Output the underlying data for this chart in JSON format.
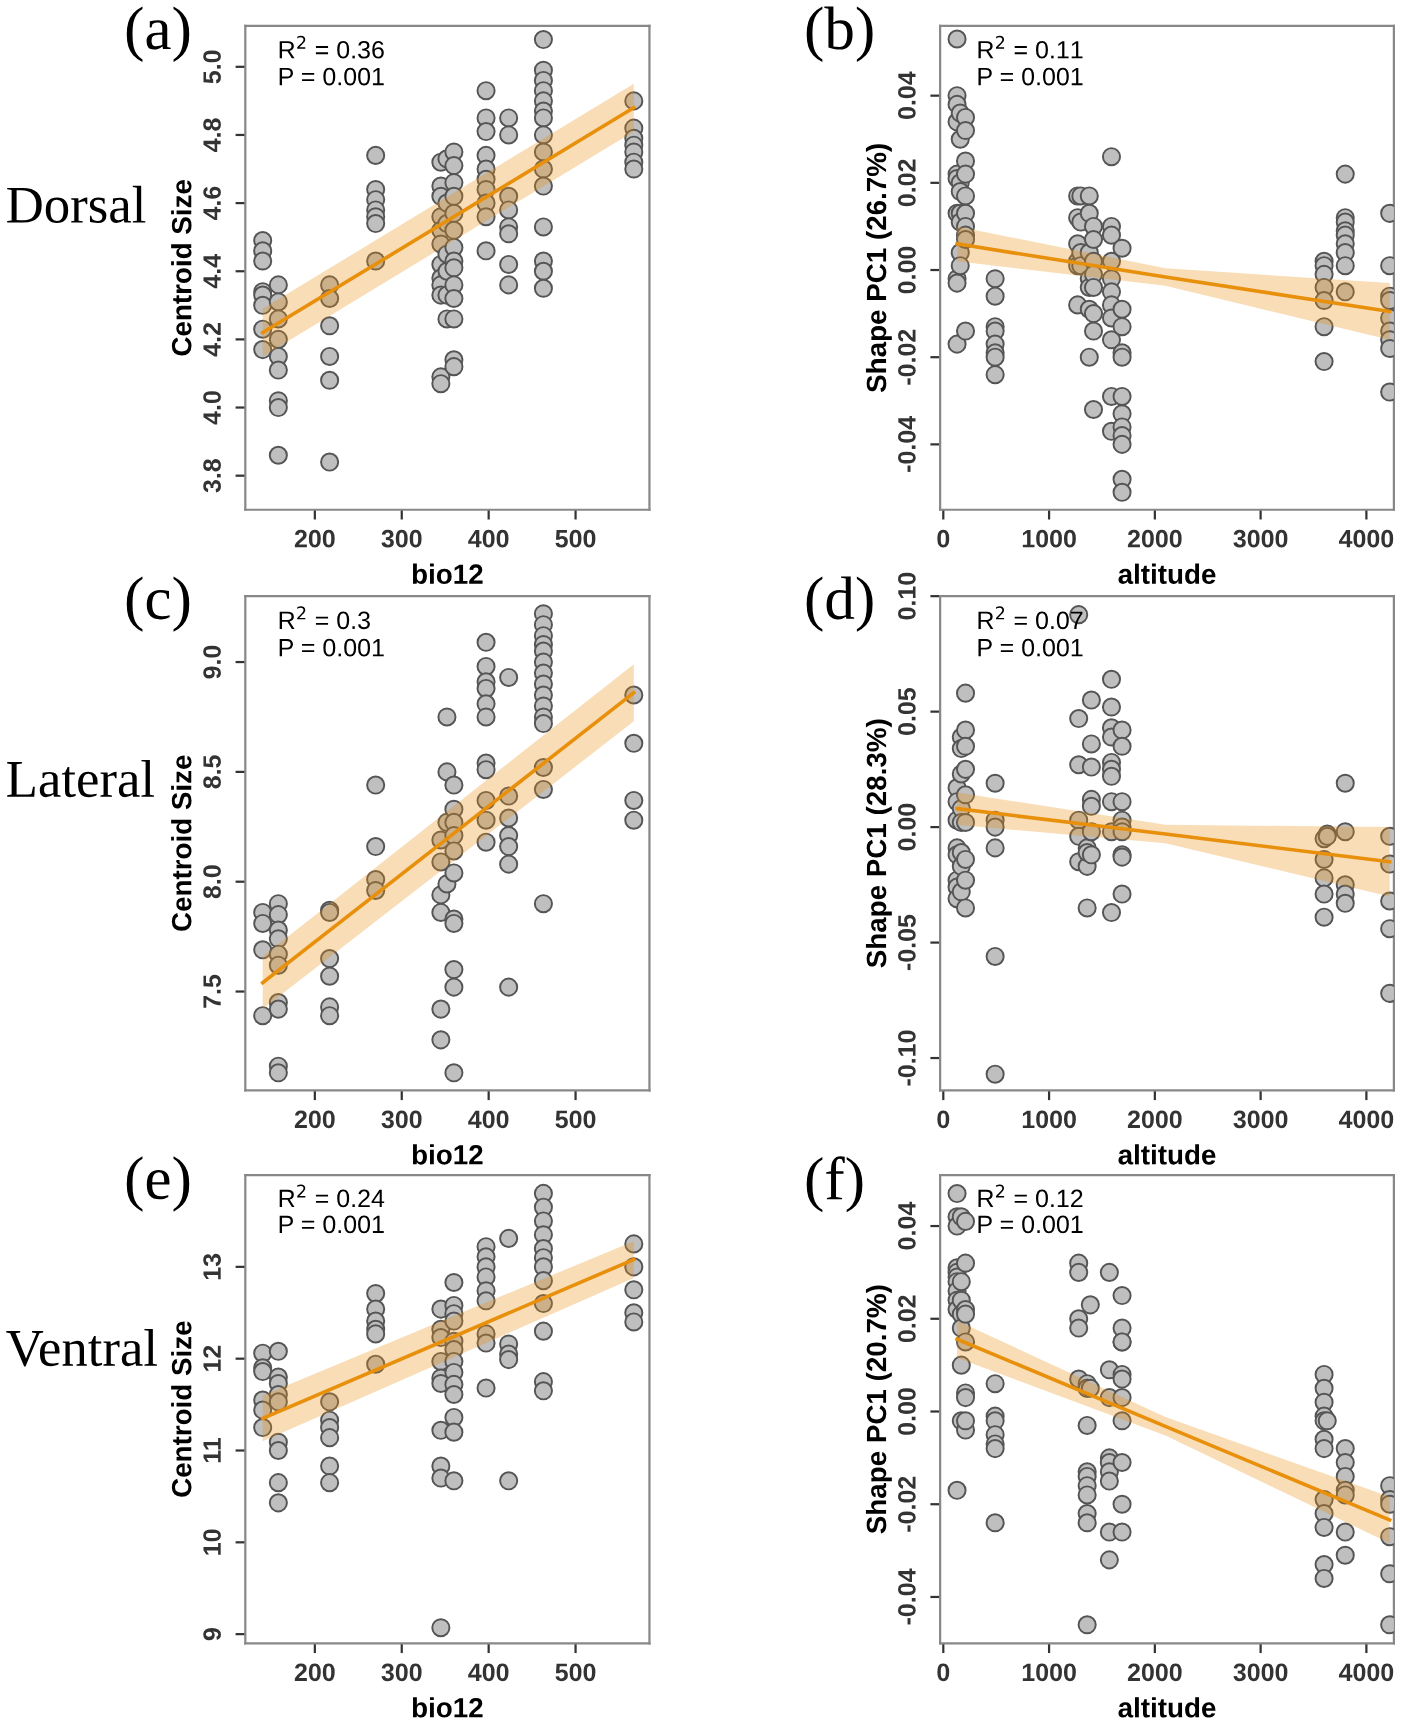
{
  "chart_data": [
    {
      "type": "scatter",
      "title": "(a)",
      "xlabel": "bio12",
      "ylabel": "Centroid Size",
      "xlim": [
        120,
        585
      ],
      "xticks": [
        200,
        300,
        400,
        500
      ],
      "ylim": [
        3.7,
        5.12
      ],
      "yticks": [
        3.8,
        {
          "value": 4,
          "label": "4.0"
        },
        4.2,
        4.4,
        4.6,
        4.8,
        {
          "value": 5,
          "label": "5.0"
        }
      ],
      "grid": false,
      "legend": false,
      "annotations": [
        "Dorsal",
        "R$^{2}$ = 0.36",
        "P = 0.001"
      ],
      "series": [
        {
          "marker": "circle",
          "color": "#bfbfbf",
          "x": [
            140,
            140,
            140,
            140,
            140,
            140,
            140,
            140,
            158,
            158,
            158,
            158,
            158,
            158,
            158,
            158,
            158,
            217,
            217,
            217,
            217,
            217,
            217,
            270,
            270,
            270,
            270,
            270,
            270,
            270,
            345,
            345,
            345,
            345,
            345,
            345,
            345,
            345,
            345,
            345,
            345,
            345,
            352,
            352,
            352,
            352,
            352,
            352,
            352,
            360,
            360,
            360,
            360,
            360,
            360,
            360,
            360,
            360,
            360,
            360,
            360,
            360,
            360,
            397,
            397,
            397,
            397,
            397,
            397,
            397,
            397,
            397,
            397,
            423,
            423,
            423,
            423,
            423,
            423,
            423,
            423,
            463,
            463,
            463,
            463,
            463,
            463,
            463,
            463,
            463,
            463,
            463,
            463,
            463,
            463,
            463,
            567,
            567,
            567,
            567,
            567,
            567,
            567
          ],
          "values": [
            4.49,
            4.46,
            4.43,
            4.34,
            4.33,
            4.3,
            4.23,
            4.17,
            4.36,
            4.31,
            4.26,
            4.2,
            4.15,
            4.11,
            4.02,
            4.0,
            3.86,
            4.36,
            4.32,
            4.24,
            4.15,
            4.08,
            3.84,
            4.74,
            4.64,
            4.61,
            4.58,
            4.56,
            4.54,
            4.43,
            4.72,
            4.65,
            4.62,
            4.56,
            4.52,
            4.48,
            4.42,
            4.38,
            4.36,
            4.33,
            4.09,
            4.07,
            4.73,
            4.6,
            4.54,
            4.45,
            4.4,
            4.33,
            4.26,
            4.75,
            4.71,
            4.66,
            4.62,
            4.57,
            4.52,
            4.47,
            4.43,
            4.41,
            4.36,
            4.32,
            4.26,
            4.14,
            4.12,
            4.93,
            4.85,
            4.81,
            4.74,
            4.7,
            4.67,
            4.64,
            4.6,
            4.56,
            4.46,
            4.85,
            4.8,
            4.62,
            4.58,
            4.53,
            4.51,
            4.42,
            4.36,
            5.08,
            4.99,
            4.96,
            4.93,
            4.9,
            4.87,
            4.85,
            4.8,
            4.75,
            4.7,
            4.65,
            4.53,
            4.43,
            4.4,
            4.35,
            4.9,
            4.82,
            4.79,
            4.77,
            4.75,
            4.72,
            4.7
          ]
        },
        {
          "type": "line",
          "color": "#e8900c",
          "x": [
            140,
            567
          ],
          "values": [
            4.22,
            4.88
          ],
          "lower": [
            4.15,
            4.81
          ],
          "upper": [
            4.29,
            4.95
          ]
        }
      ]
    },
    {
      "type": "scatter",
      "title": "(b)",
      "xlabel": "altitude",
      "ylabel": "Shape PC1 (26.7%)",
      "xlim": [
        -30,
        4260
      ],
      "xticks": [
        0,
        1000,
        2000,
        3000,
        4000
      ],
      "ylim": [
        -0.055,
        0.056
      ],
      "yticks": [
        {
          "value": -0.04,
          "label": "-0.04"
        },
        {
          "value": -0.02,
          "label": "-0.02"
        },
        {
          "value": 0,
          "label": "0.00"
        },
        {
          "value": 0.02,
          "label": "0.02"
        },
        {
          "value": 0.04,
          "label": "0.04"
        }
      ],
      "grid": false,
      "legend": false,
      "annotations": [
        "R$^{2}$ = 0.11",
        "P = 0.001"
      ],
      "series": [
        {
          "marker": "circle",
          "color": "#bfbfbf",
          "x": [
            130,
            130,
            130,
            130,
            130,
            130,
            130,
            130,
            130,
            130,
            160,
            160,
            160,
            160,
            160,
            160,
            160,
            160,
            210,
            210,
            210,
            210,
            210,
            210,
            210,
            210,
            210,
            210,
            490,
            490,
            490,
            490,
            490,
            490,
            490,
            490,
            1270,
            1270,
            1270,
            1270,
            1270,
            1270,
            1300,
            1300,
            1300,
            1300,
            1380,
            1380,
            1380,
            1380,
            1380,
            1380,
            1380,
            1420,
            1420,
            1420,
            1420,
            1420,
            1420,
            1420,
            1420,
            1590,
            1590,
            1590,
            1590,
            1590,
            1590,
            1590,
            1590,
            1590,
            1590,
            1590,
            1690,
            1690,
            1690,
            1690,
            1690,
            1690,
            1690,
            1690,
            1690,
            1690,
            1690,
            1690,
            3600,
            3600,
            3600,
            3600,
            3600,
            3600,
            3600,
            3800,
            3800,
            3800,
            3800,
            3800,
            3800,
            3800,
            3800,
            3800,
            4220,
            4220,
            4220,
            4220,
            4220,
            4220,
            4220,
            4220,
            4220
          ],
          "values": [
            0.053,
            0.04,
            0.038,
            0.034,
            0.022,
            0.021,
            0.013,
            -0.002,
            -0.003,
            -0.017,
            0.036,
            0.03,
            0.02,
            0.018,
            0.013,
            0.011,
            0.004,
            0.001,
            0.035,
            0.032,
            0.025,
            0.022,
            0.017,
            0.013,
            0.01,
            0.008,
            0.007,
            -0.014,
            -0.002,
            -0.006,
            -0.013,
            -0.014,
            -0.017,
            -0.019,
            -0.02,
            -0.024,
            0.017,
            0.012,
            0.006,
            0.002,
            0.001,
            -0.008,
            0.017,
            0.011,
            0.004,
            0.001,
            0.017,
            0.013,
            0.004,
            -0.002,
            -0.004,
            -0.009,
            -0.02,
            0.01,
            0.007,
            0.002,
            -0.001,
            -0.004,
            -0.01,
            -0.014,
            -0.032,
            0.026,
            0.01,
            0.008,
            0.002,
            -0.002,
            -0.005,
            -0.008,
            -0.011,
            -0.016,
            -0.029,
            -0.037,
            0.005,
            -0.009,
            -0.013,
            -0.019,
            -0.02,
            -0.029,
            -0.033,
            -0.036,
            -0.038,
            -0.04,
            -0.048,
            -0.051,
            0.002,
            0.001,
            -0.001,
            -0.004,
            -0.007,
            -0.013,
            -0.021,
            0.022,
            0.012,
            0.011,
            0.009,
            0.008,
            0.006,
            0.004,
            0.001,
            -0.005,
            0.013,
            0.001,
            -0.006,
            -0.007,
            -0.011,
            -0.014,
            -0.016,
            -0.018,
            -0.028
          ]
        },
        {
          "type": "line",
          "color": "#e8900c",
          "x": [
            130,
            2100,
            4220
          ],
          "values": [
            0.006,
            -0.0016,
            -0.0095
          ],
          "lower": [
            0.002,
            -0.0036,
            -0.016
          ],
          "upper": [
            0.01,
            0.0004,
            -0.003
          ]
        }
      ]
    },
    {
      "type": "scatter",
      "title": "(c)",
      "xlabel": "bio12",
      "ylabel": "Centroid Size",
      "xlim": [
        120,
        585
      ],
      "xticks": [
        200,
        300,
        400,
        500
      ],
      "ylim": [
        7.05,
        9.3
      ],
      "yticks": [
        7.5,
        {
          "value": 8,
          "label": "8.0"
        },
        8.5,
        {
          "value": 9,
          "label": "9.0"
        }
      ],
      "grid": false,
      "legend": false,
      "annotations": [
        "Lateral",
        "R$^{2}$ = 0.3",
        "P = 0.001"
      ],
      "series": [
        {
          "marker": "circle",
          "color": "#bfbfbf",
          "x": [
            140,
            140,
            140,
            140,
            158,
            158,
            158,
            158,
            158,
            158,
            158,
            158,
            158,
            158,
            217,
            217,
            217,
            217,
            217,
            217,
            270,
            270,
            270,
            270,
            345,
            345,
            345,
            345,
            345,
            345,
            352,
            352,
            352,
            352,
            360,
            360,
            360,
            360,
            360,
            360,
            360,
            360,
            360,
            360,
            360,
            397,
            397,
            397,
            397,
            397,
            397,
            397,
            397,
            397,
            397,
            397,
            423,
            423,
            423,
            423,
            423,
            423,
            423,
            463,
            463,
            463,
            463,
            463,
            463,
            463,
            463,
            463,
            463,
            463,
            463,
            463,
            463,
            463,
            567,
            567,
            567,
            567
          ],
          "values": [
            7.86,
            7.81,
            7.69,
            7.39,
            7.9,
            7.85,
            7.78,
            7.74,
            7.67,
            7.62,
            7.45,
            7.42,
            7.16,
            7.13,
            7.87,
            7.86,
            7.65,
            7.57,
            7.43,
            7.39,
            8.44,
            8.16,
            8.01,
            7.96,
            8.19,
            8.09,
            7.94,
            7.86,
            7.42,
            7.28,
            8.75,
            8.5,
            8.27,
            7.99,
            8.44,
            8.33,
            8.27,
            8.21,
            8.14,
            8.04,
            7.83,
            7.81,
            7.6,
            7.52,
            7.13,
            9.09,
            8.98,
            8.91,
            8.88,
            8.81,
            8.75,
            8.54,
            8.51,
            8.37,
            8.28,
            8.18,
            8.93,
            8.39,
            8.29,
            8.21,
            8.16,
            8.08,
            7.52,
            9.22,
            9.17,
            9.12,
            9.08,
            9.05,
            9.0,
            8.95,
            8.9,
            8.85,
            8.8,
            8.75,
            8.72,
            8.52,
            8.42,
            7.9,
            8.85,
            8.63,
            8.37,
            8.28
          ]
        },
        {
          "type": "line",
          "color": "#e8900c",
          "x": [
            140,
            567
          ],
          "values": [
            7.54,
            8.86
          ],
          "lower": [
            7.42,
            8.73
          ],
          "upper": [
            7.66,
            8.99
          ]
        }
      ]
    },
    {
      "type": "scatter",
      "title": "(d)",
      "xlabel": "altitude",
      "ylabel": "Shape PC1 (28.3%)",
      "xlim": [
        -30,
        4260
      ],
      "xticks": [
        0,
        1000,
        2000,
        3000,
        4000
      ],
      "ylim": [
        -0.114,
        0.1
      ],
      "yticks": [
        {
          "value": -0.1,
          "label": "-0.10"
        },
        {
          "value": -0.05,
          "label": "-0.05"
        },
        {
          "value": 0,
          "label": "0.00"
        },
        {
          "value": 0.05,
          "label": "0.05"
        },
        {
          "value": 0.1,
          "label": "0.10"
        }
      ],
      "grid": false,
      "legend": false,
      "annotations": [
        "R$^{2}$ = 0.07",
        "P = 0.001"
      ],
      "series": [
        {
          "marker": "circle",
          "color": "#bfbfbf",
          "x": [
            130,
            130,
            130,
            130,
            130,
            130,
            130,
            130,
            170,
            170,
            170,
            170,
            170,
            170,
            170,
            170,
            210,
            210,
            210,
            210,
            210,
            210,
            210,
            210,
            210,
            490,
            490,
            490,
            490,
            490,
            490,
            1280,
            1280,
            1280,
            1280,
            1280,
            1280,
            1360,
            1360,
            1360,
            1360,
            1400,
            1400,
            1400,
            1400,
            1400,
            1400,
            1400,
            1590,
            1590,
            1590,
            1590,
            1590,
            1590,
            1590,
            1590,
            1590,
            1590,
            1690,
            1690,
            1690,
            1690,
            1690,
            1690,
            1690,
            1690,
            1690,
            3600,
            3600,
            3600,
            3600,
            3600,
            3630,
            3630,
            3800,
            3800,
            3800,
            3800,
            3800,
            4220,
            4220,
            4220,
            4220,
            4220
          ],
          "values": [
            0.017,
            0.011,
            0.003,
            -0.009,
            -0.012,
            -0.023,
            -0.026,
            -0.031,
            0.039,
            0.034,
            0.023,
            0.008,
            0.002,
            -0.011,
            -0.017,
            -0.028,
            0.058,
            0.042,
            0.035,
            0.025,
            0.014,
            0.002,
            -0.014,
            -0.023,
            -0.035,
            0.019,
            0.003,
            0.0,
            -0.009,
            -0.056,
            -0.107,
            0.092,
            0.047,
            0.027,
            0.003,
            -0.004,
            -0.015,
            -0.009,
            -0.017,
            -0.035,
            -0.011,
            0.055,
            0.036,
            0.026,
            0.012,
            0.009,
            -0.002,
            -0.012,
            0.064,
            0.052,
            0.043,
            0.039,
            0.028,
            0.025,
            0.022,
            0.011,
            -0.002,
            -0.037,
            0.042,
            0.035,
            0.011,
            0.003,
            0.0,
            -0.002,
            -0.012,
            -0.013,
            -0.029,
            -0.005,
            -0.014,
            -0.022,
            -0.029,
            -0.039,
            -0.003,
            -0.004,
            0.019,
            -0.002,
            -0.025,
            -0.029,
            -0.033,
            -0.004,
            -0.016,
            -0.032,
            -0.044,
            -0.072
          ]
        },
        {
          "type": "line",
          "color": "#e8900c",
          "x": [
            130,
            2100,
            4220
          ],
          "values": [
            0.008,
            -0.003,
            -0.015
          ],
          "lower": [
            0.001,
            -0.007,
            -0.03
          ],
          "upper": [
            0.015,
            0.001,
            0.0
          ]
        }
      ]
    },
    {
      "type": "scatter",
      "title": "(e)",
      "xlabel": "bio12",
      "ylabel": "Centroid Size",
      "xlim": [
        120,
        585
      ],
      "xticks": [
        200,
        300,
        400,
        500
      ],
      "ylim": [
        8.9,
        14.0
      ],
      "yticks": [
        9,
        10,
        11,
        12,
        13
      ],
      "grid": false,
      "legend": false,
      "annotations": [
        "Ventral",
        "R$^{2}$ = 0.24",
        "P = 0.001"
      ],
      "series": [
        {
          "marker": "circle",
          "color": "#bfbfbf",
          "x": [
            140,
            140,
            140,
            140,
            140,
            140,
            158,
            158,
            158,
            158,
            158,
            158,
            158,
            158,
            158,
            217,
            217,
            217,
            217,
            217,
            217,
            270,
            270,
            270,
            270,
            270,
            270,
            345,
            345,
            345,
            345,
            345,
            345,
            345,
            345,
            345,
            345,
            360,
            360,
            360,
            360,
            360,
            360,
            360,
            360,
            360,
            360,
            360,
            360,
            360,
            397,
            397,
            397,
            397,
            397,
            397,
            397,
            397,
            397,
            423,
            423,
            423,
            423,
            423,
            463,
            463,
            463,
            463,
            463,
            463,
            463,
            463,
            463,
            463,
            463,
            463,
            567,
            567,
            567,
            567,
            567
          ],
          "values": [
            12.06,
            11.9,
            11.86,
            11.55,
            11.44,
            11.25,
            12.08,
            11.8,
            11.73,
            11.61,
            11.53,
            11.09,
            11.0,
            10.65,
            10.43,
            11.53,
            11.33,
            11.25,
            11.14,
            10.83,
            10.65,
            12.71,
            12.54,
            12.41,
            12.32,
            12.27,
            11.94,
            12.54,
            12.32,
            12.23,
            11.97,
            11.79,
            11.73,
            11.22,
            10.83,
            10.7,
            9.07,
            12.83,
            12.58,
            12.49,
            12.41,
            12.19,
            12.1,
            11.97,
            11.85,
            11.72,
            11.61,
            11.36,
            11.2,
            10.67,
            13.22,
            13.11,
            13.0,
            12.89,
            12.74,
            12.63,
            12.27,
            12.17,
            11.68,
            13.31,
            12.16,
            12.05,
            11.99,
            10.67,
            13.8,
            13.65,
            13.5,
            13.35,
            13.2,
            13.1,
            13.0,
            12.85,
            12.6,
            12.3,
            11.75,
            11.65,
            13.25,
            13.0,
            12.75,
            12.5,
            12.4
          ]
        },
        {
          "type": "line",
          "color": "#e8900c",
          "x": [
            140,
            567
          ],
          "values": [
            11.35,
            13.08
          ],
          "lower": [
            11.1,
            12.88
          ],
          "upper": [
            11.6,
            13.28
          ]
        }
      ]
    },
    {
      "type": "scatter",
      "title": "(f)",
      "xlabel": "altitude",
      "ylabel": "Shape PC1 (20.7%)",
      "xlim": [
        -30,
        4260
      ],
      "xticks": [
        0,
        1000,
        2000,
        3000,
        4000
      ],
      "ylim": [
        -0.05,
        0.051
      ],
      "yticks": [
        {
          "value": -0.04,
          "label": "-0.04"
        },
        {
          "value": -0.02,
          "label": "-0.02"
        },
        {
          "value": 0,
          "label": "0.00"
        },
        {
          "value": 0.02,
          "label": "0.02"
        },
        {
          "value": 0.04,
          "label": "0.04"
        }
      ],
      "grid": false,
      "legend": false,
      "annotations": [
        "R$^{2}$ = 0.12",
        "P = 0.001"
      ],
      "series": [
        {
          "marker": "circle",
          "color": "#bfbfbf",
          "x": [
            130,
            130,
            130,
            130,
            130,
            130,
            130,
            130,
            130,
            130,
            130,
            170,
            170,
            170,
            170,
            170,
            170,
            170,
            210,
            210,
            210,
            210,
            210,
            210,
            210,
            210,
            210,
            490,
            490,
            490,
            490,
            490,
            490,
            490,
            1280,
            1280,
            1280,
            1280,
            1280,
            1360,
            1360,
            1360,
            1360,
            1360,
            1360,
            1360,
            1360,
            1360,
            1360,
            1360,
            1390,
            1390,
            1570,
            1570,
            1570,
            1570,
            1570,
            1570,
            1570,
            1570,
            1570,
            1690,
            1690,
            1690,
            1690,
            1690,
            1690,
            1690,
            1690,
            1690,
            1690,
            1690,
            3600,
            3600,
            3600,
            3600,
            3600,
            3600,
            3600,
            3600,
            3600,
            3600,
            3600,
            3600,
            3630,
            3800,
            3800,
            3800,
            3800,
            3800,
            3800,
            3800,
            4220,
            4220,
            4220,
            4220,
            4220,
            4220
          ],
          "values": [
            0.047,
            0.042,
            0.04,
            0.031,
            0.03,
            0.029,
            0.028,
            0.026,
            0.024,
            0.022,
            -0.017,
            0.042,
            0.028,
            0.024,
            0.021,
            0.018,
            0.01,
            -0.002,
            0.041,
            0.032,
            0.022,
            0.021,
            0.015,
            0.004,
            0.003,
            -0.004,
            -0.002,
            0.006,
            -0.001,
            -0.002,
            -0.005,
            -0.007,
            -0.008,
            -0.024,
            0.032,
            0.03,
            0.02,
            0.018,
            0.007,
            0.006,
            0.005,
            0.005,
            -0.003,
            -0.013,
            -0.014,
            -0.016,
            -0.018,
            -0.022,
            -0.024,
            -0.046,
            0.023,
            0.005,
            0.03,
            0.009,
            0.003,
            -0.01,
            -0.011,
            -0.013,
            -0.015,
            -0.026,
            -0.032,
            0.025,
            0.018,
            0.015,
            0.015,
            0.008,
            0.007,
            0.003,
            -0.002,
            -0.011,
            -0.02,
            -0.026,
            0.008,
            0.005,
            0.002,
            -0.001,
            -0.002,
            -0.006,
            -0.008,
            -0.019,
            -0.022,
            -0.025,
            -0.033,
            -0.036,
            -0.002,
            -0.008,
            -0.011,
            -0.014,
            -0.017,
            -0.018,
            -0.026,
            -0.031,
            -0.016,
            -0.019,
            -0.02,
            -0.027,
            -0.035,
            -0.046
          ]
        },
        {
          "type": "line",
          "color": "#e8900c",
          "x": [
            130,
            2100,
            4220
          ],
          "values": [
            0.0156,
            -0.0032,
            -0.0234
          ],
          "lower": [
            0.0116,
            -0.0052,
            -0.0284
          ],
          "upper": [
            0.0196,
            -0.0012,
            -0.0184
          ]
        }
      ]
    }
  ]
}
